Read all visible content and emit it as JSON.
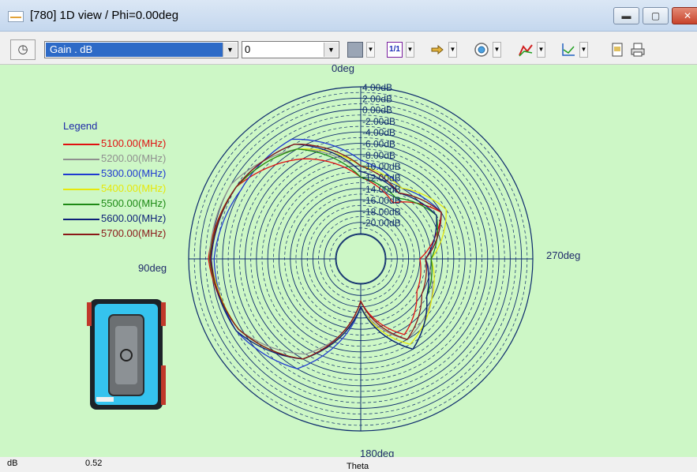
{
  "window": {
    "title": "[780] 1D view / Phi=0.00deg",
    "min_glyph": "▬",
    "max_glyph": "▢",
    "close_glyph": "✕"
  },
  "toolbar": {
    "shape_glyph": "◷",
    "quantity": "Gain . dB",
    "offset": "0",
    "dropdown_glyph": "▼",
    "scale_button_label": "1/1",
    "buttons": [
      "view-mode",
      "scale",
      "markers",
      "target",
      "curve-style",
      "axes",
      "notes",
      "print"
    ]
  },
  "colors": {
    "plot_background": "#cdf7c6",
    "grid": "#0c2a6c"
  },
  "chart_data": {
    "type": "polar",
    "title": "",
    "angle_variable": "Theta",
    "angle_labels": [
      "0deg",
      "90deg",
      "180deg",
      "270deg"
    ],
    "radial_tick_labels": [
      "4.00dB",
      "2.00dB",
      "0.00dB",
      "-2.00dB",
      "-4.00dB",
      "-6.00dB",
      "-8.00dB",
      "-10.00dB",
      "-12.00dB",
      "-14.00dB",
      "-16.00dB",
      "-18.00dB",
      "-20.00dB"
    ],
    "radial_range_db": [
      -22,
      4
    ],
    "units": "dB",
    "legend_title": "Legend",
    "legend_position": "left",
    "theta_deg": [
      0,
      30,
      60,
      90,
      120,
      150,
      180,
      210,
      240,
      270,
      300,
      330
    ],
    "series": [
      {
        "name": "5100.00(MHz)",
        "color": "#e01010",
        "gain_db": [
          -12,
          -6,
          -1,
          0.5,
          -1.5,
          -6,
          -19,
          -11,
          -15,
          -16,
          -10,
          -15
        ]
      },
      {
        "name": "5200.00(MHz)",
        "color": "#8f8f8f",
        "gain_db": [
          -11,
          -4,
          0,
          0.3,
          -1.5,
          -7,
          -18,
          -10,
          -12,
          -15,
          -10,
          -13
        ]
      },
      {
        "name": "5300.00(MHz)",
        "color": "#1f3ad0",
        "gain_db": [
          -9,
          -2,
          -2,
          -0.5,
          -1,
          -4,
          -18,
          -8,
          -13,
          -15,
          -10,
          -12
        ]
      },
      {
        "name": "5400.00(MHz)",
        "color": "#e6e80a",
        "gain_db": [
          -10,
          -4,
          -1,
          0,
          -1.5,
          -6,
          -18,
          -9,
          -12,
          -14,
          -9,
          -12
        ]
      },
      {
        "name": "5500.00(MHz)",
        "color": "#1e8a16",
        "gain_db": [
          -12,
          -4,
          -1,
          0.3,
          -1.5,
          -6,
          -18,
          -8,
          -13,
          -14,
          -11,
          -14
        ]
      },
      {
        "name": "5600.00(MHz)",
        "color": "#0d1f78",
        "gain_db": [
          -11,
          -3,
          -1,
          0,
          -1,
          -6,
          -18,
          -8,
          -13,
          -15,
          -11,
          -13
        ]
      },
      {
        "name": "5700.00(MHz)",
        "color": "#8a1818",
        "gain_db": [
          -10,
          -3,
          -1,
          0.2,
          -1.5,
          -6,
          -19,
          -10,
          -14,
          -15,
          -10,
          -13
        ]
      }
    ]
  },
  "status": {
    "unit": "dB",
    "value": "0.52",
    "axis": "Theta"
  }
}
